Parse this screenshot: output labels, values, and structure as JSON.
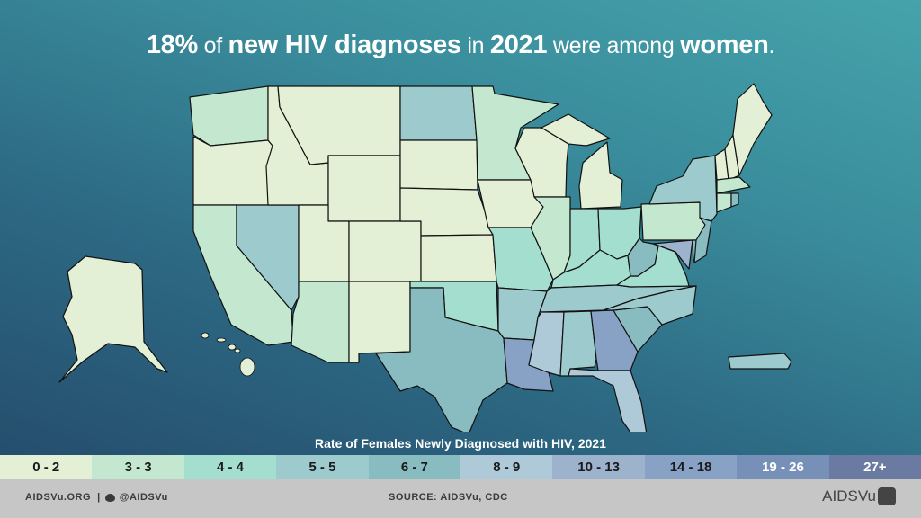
{
  "title": [
    {
      "text": "18%",
      "weight": "b"
    },
    {
      "text": " of ",
      "weight": "l"
    },
    {
      "text": "new HIV diagnoses",
      "weight": "b"
    },
    {
      "text": " in ",
      "weight": "l"
    },
    {
      "text": "2021",
      "weight": "b"
    },
    {
      "text": " were among ",
      "weight": "l"
    },
    {
      "text": "women",
      "weight": "b"
    },
    {
      "text": ".",
      "weight": "l"
    }
  ],
  "legend": {
    "title": "Rate of Females Newly Diagnosed with HIV, 2021",
    "bins": [
      {
        "label": "0 - 2",
        "color": "#e3f0d5"
      },
      {
        "label": "3 - 3",
        "color": "#c3e8cf"
      },
      {
        "label": "4 - 4",
        "color": "#a3dece"
      },
      {
        "label": "5 - 5",
        "color": "#9dcbcd"
      },
      {
        "label": "6 - 7",
        "color": "#88bcc1"
      },
      {
        "label": "8 - 9",
        "color": "#aec9d7"
      },
      {
        "label": "10 - 13",
        "color": "#9cb2cd"
      },
      {
        "label": "14 - 18",
        "color": "#87a2c5"
      },
      {
        "label": "19 - 26",
        "color": "#7690b8"
      },
      {
        "label": "27+",
        "color": "#6a7aa0"
      }
    ]
  },
  "states": {
    "WA": 1,
    "OR": 0,
    "CA": 1,
    "NV": 3,
    "ID": 0,
    "MT": 0,
    "WY": 0,
    "UT": 0,
    "AZ": 1,
    "CO": 0,
    "NM": 0,
    "ND": 3,
    "SD": 0,
    "NE": 0,
    "KS": 0,
    "OK": 2,
    "TX": 4,
    "MN": 1,
    "IA": 0,
    "MO": 2,
    "AR": 3,
    "LA": 7,
    "WI": 0,
    "IL": 1,
    "MI": 0,
    "MI_UP": 0,
    "IN": 2,
    "OH": 2,
    "KY": 2,
    "TN": 3,
    "MS": 5,
    "AL": 3,
    "GA": 7,
    "FL": 5,
    "SC": 4,
    "NC": 3,
    "VA": 2,
    "WV": 4,
    "PA": 1,
    "MD": 6,
    "DE": 4,
    "NJ": 4,
    "NY": 3,
    "VT": 0,
    "NH": 0,
    "ME": 0,
    "MA": 1,
    "CT": 1,
    "RI": 4,
    "AK": 0,
    "HI": 0,
    "PR": 3
  },
  "footer": {
    "left": "AIDSVu.ORG  |",
    "twitter_icon": "twitter-icon",
    "twitter": "@AIDSVu",
    "source": "SOURCE: AIDSVu, CDC",
    "logo": "AIDSVu"
  }
}
